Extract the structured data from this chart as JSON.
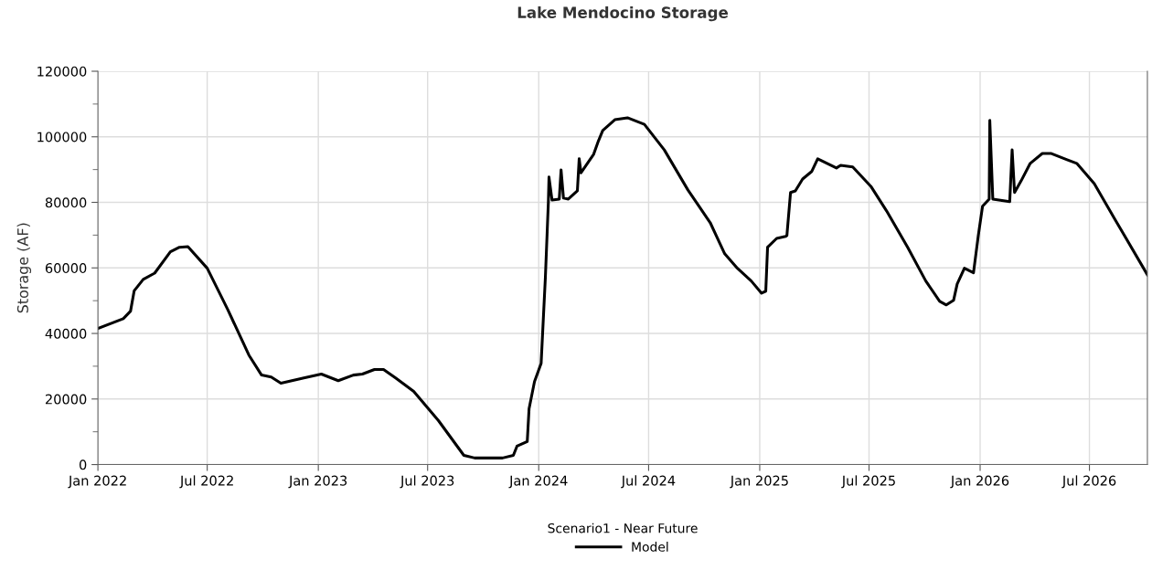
{
  "chart_data": {
    "type": "line",
    "title": "Lake Mendocino Storage",
    "ylabel": "Storage (AF)",
    "legend_title": "Scenario1 - Near Future",
    "legend": "bottom",
    "grid": true,
    "xlim": [
      "2022-01-01",
      "2026-10-05"
    ],
    "xticks": [
      {
        "value": "2022-01-01",
        "label": "Jan 2022"
      },
      {
        "value": "2022-07-01",
        "label": "Jul 2022"
      },
      {
        "value": "2023-01-01",
        "label": "Jan 2023"
      },
      {
        "value": "2023-07-01",
        "label": "Jul 2023"
      },
      {
        "value": "2024-01-01",
        "label": "Jan 2024"
      },
      {
        "value": "2024-07-01",
        "label": "Jul 2024"
      },
      {
        "value": "2025-01-01",
        "label": "Jan 2025"
      },
      {
        "value": "2025-07-01",
        "label": "Jul 2025"
      },
      {
        "value": "2026-01-01",
        "label": "Jan 2026"
      },
      {
        "value": "2026-07-01",
        "label": "Jul 2026"
      }
    ],
    "ylim": [
      0,
      120000
    ],
    "yticks": [
      0,
      {
        "value": 10000,
        "label": null
      },
      20000,
      {
        "value": 30000,
        "label": null
      },
      40000,
      {
        "value": 50000,
        "label": null
      },
      60000,
      {
        "value": 70000,
        "label": null
      },
      80000,
      {
        "value": 90000,
        "label": null
      },
      100000,
      {
        "value": 110000,
        "label": null
      },
      120000
    ],
    "series": [
      {
        "name": "Model",
        "color": "#000000",
        "x": [
          "2022-01-01",
          "2022-02-12",
          "2022-02-24",
          "2022-03-02",
          "2022-03-17",
          "2022-04-05",
          "2022-05-01",
          "2022-05-16",
          "2022-05-30",
          "2022-07-01",
          "2022-08-04",
          "2022-09-08",
          "2022-09-29",
          "2022-10-15",
          "2022-10-31",
          "2022-12-08",
          "2023-01-06",
          "2023-02-03",
          "2023-02-28",
          "2023-03-15",
          "2023-04-04",
          "2023-04-19",
          "2023-05-09",
          "2023-06-08",
          "2023-07-19",
          "2023-08-30",
          "2023-09-17",
          "2023-11-02",
          "2023-11-20",
          "2023-11-26",
          "2023-12-13",
          "2023-12-16",
          "2023-12-25",
          "2024-01-05",
          "2024-01-09",
          "2024-01-12",
          "2024-01-17",
          "2024-01-18",
          "2024-01-23",
          "2024-02-04",
          "2024-02-07",
          "2024-02-11",
          "2024-02-19",
          "2024-03-05",
          "2024-03-08",
          "2024-03-11",
          "2024-04-01",
          "2024-04-09",
          "2024-04-16",
          "2024-05-06",
          "2024-05-27",
          "2024-06-24",
          "2024-07-27",
          "2024-09-04",
          "2024-10-11",
          "2024-11-04",
          "2024-11-25",
          "2024-12-18",
          "2025-01-04",
          "2025-01-11",
          "2025-01-14",
          "2025-01-29",
          "2025-02-13",
          "2025-02-15",
          "2025-02-21",
          "2025-03-01",
          "2025-03-13",
          "2025-03-28",
          "2025-04-07",
          "2025-05-08",
          "2025-05-15",
          "2025-06-04",
          "2025-07-04",
          "2025-07-30",
          "2025-09-03",
          "2025-10-03",
          "2025-10-26",
          "2025-11-06",
          "2025-11-18",
          "2025-11-24",
          "2025-12-06",
          "2025-12-21",
          "2025-12-29",
          "2026-01-05",
          "2026-01-16",
          "2026-01-17",
          "2026-01-22",
          "2026-02-19",
          "2026-02-23",
          "2026-02-27",
          "2026-03-10",
          "2026-03-25",
          "2026-04-14",
          "2026-04-29",
          "2026-05-25",
          "2026-06-10",
          "2026-07-09",
          "2026-08-13",
          "2026-10-05"
        ],
        "values": [
          41500,
          44500,
          46800,
          53000,
          56500,
          58400,
          64900,
          66300,
          66500,
          59900,
          47300,
          33400,
          27300,
          26700,
          24800,
          26400,
          27600,
          25600,
          27300,
          27600,
          29000,
          29000,
          26400,
          22300,
          13400,
          2800,
          2000,
          2000,
          2800,
          5600,
          7000,
          17000,
          25300,
          30900,
          45900,
          57000,
          80200,
          87700,
          80700,
          81000,
          89900,
          81300,
          81000,
          83500,
          93300,
          89000,
          94700,
          98800,
          101900,
          105200,
          105800,
          103800,
          96000,
          83800,
          73800,
          64300,
          59900,
          56000,
          52300,
          52900,
          66300,
          69000,
          69600,
          69900,
          83000,
          83500,
          87100,
          89400,
          93300,
          90500,
          91300,
          90800,
          84900,
          77400,
          66300,
          56000,
          49800,
          48700,
          50100,
          55100,
          59900,
          58500,
          69900,
          78800,
          81000,
          105000,
          81000,
          80200,
          96000,
          83000,
          86600,
          91900,
          94900,
          94900,
          93000,
          91900,
          85700,
          74600,
          57900
        ]
      }
    ]
  }
}
